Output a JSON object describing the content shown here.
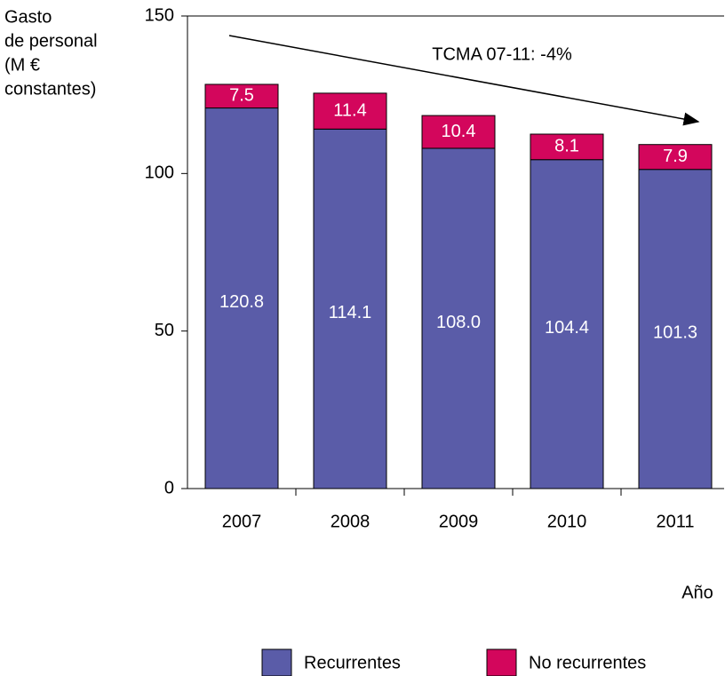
{
  "chart_data": {
    "type": "stacked_bar",
    "y_label_lines": [
      "Gasto",
      "de personal",
      "(M €",
      "constantes)"
    ],
    "x_label": "Año",
    "annotation": "TCMA 07-11: -4%",
    "categories": [
      "2007",
      "2008",
      "2009",
      "2010",
      "2011"
    ],
    "series": [
      {
        "name": "Recurrentes",
        "color": "#5a5ca8",
        "values": [
          120.8,
          114.1,
          108.0,
          104.4,
          101.3
        ],
        "value_labels": [
          "120.8",
          "114.1",
          "108.0",
          "104.4",
          "101.3"
        ]
      },
      {
        "name": "No recurrentes",
        "color": "#d3065c",
        "values": [
          7.5,
          11.4,
          10.4,
          8.1,
          7.9
        ],
        "value_labels": [
          "7.5",
          "11.4",
          "10.4",
          "8.1",
          "7.9"
        ]
      }
    ],
    "ylim": [
      0,
      150
    ],
    "yticks": [
      0,
      50,
      100,
      150
    ]
  }
}
